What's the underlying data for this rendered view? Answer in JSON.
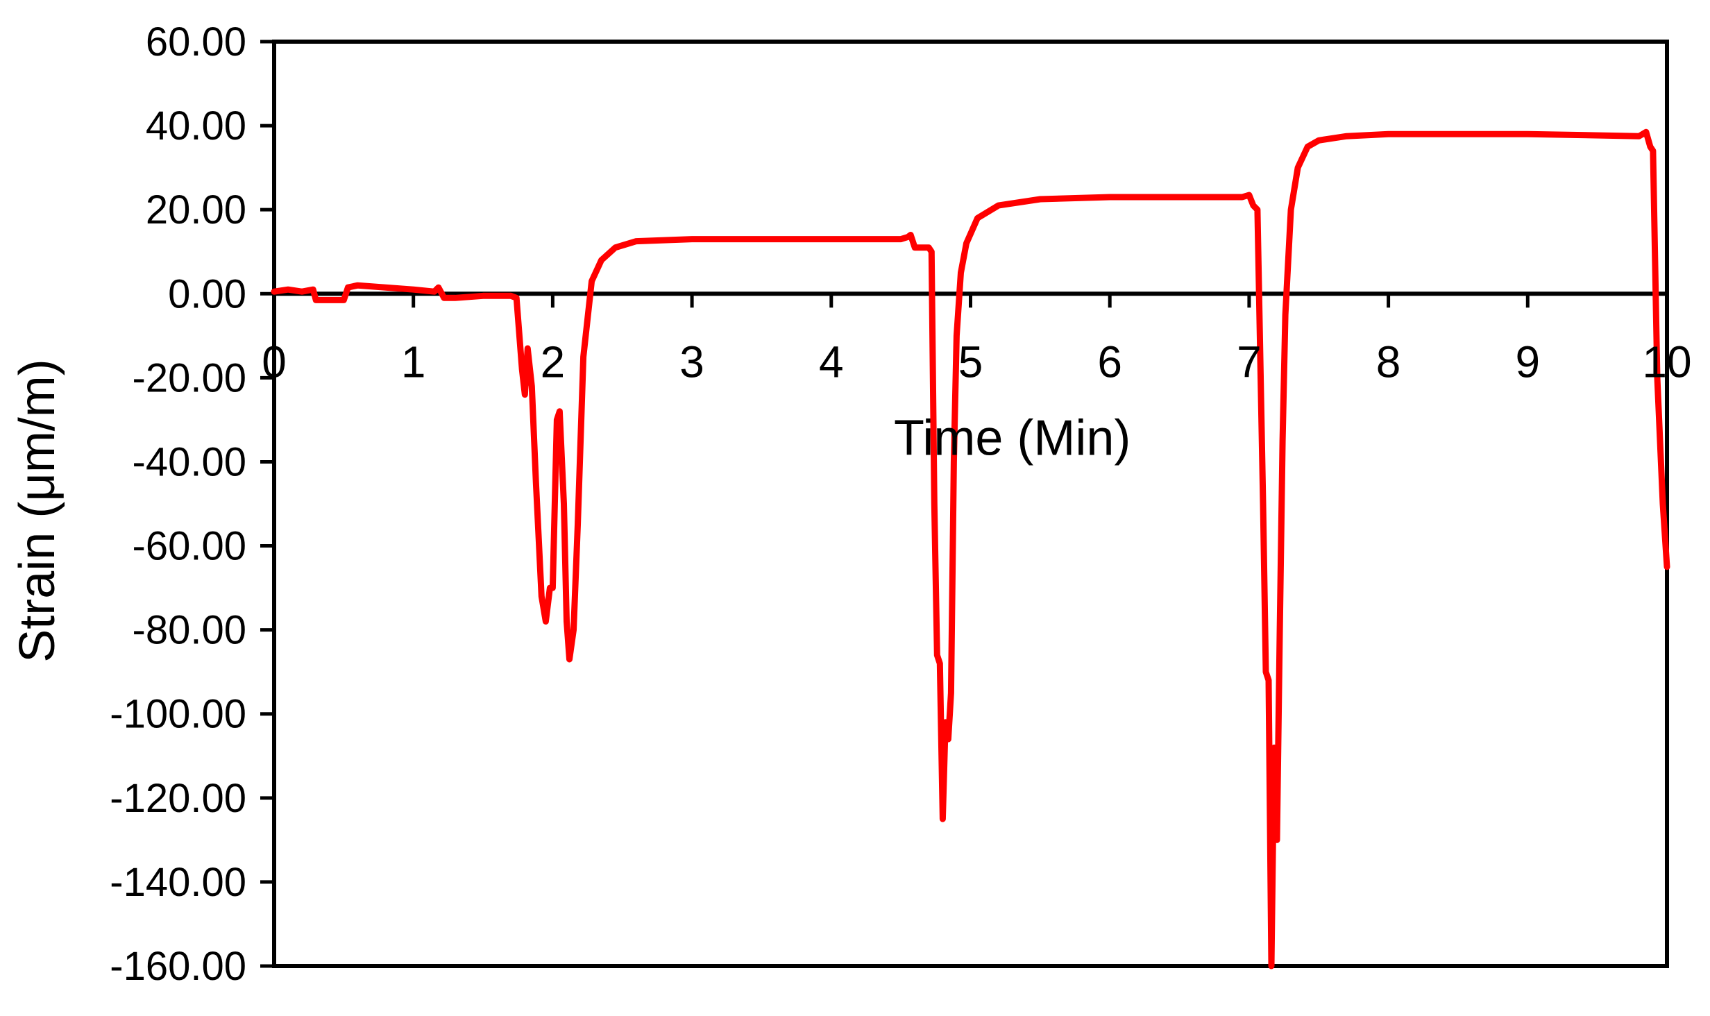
{
  "chart_data": {
    "type": "line",
    "xlabel": "Time (Min)",
    "ylabel": "Strain (μm/m)",
    "xlim": [
      0,
      10
    ],
    "ylim": [
      -160,
      60
    ],
    "x_ticks": [
      0,
      1,
      2,
      3,
      4,
      5,
      6,
      7,
      8,
      9,
      10
    ],
    "x_tick_labels": [
      "0",
      "1",
      "2",
      "3",
      "4",
      "5",
      "6",
      "7",
      "8",
      "9",
      "10"
    ],
    "y_ticks": [
      60,
      40,
      20,
      0,
      -20,
      -40,
      -60,
      -80,
      -100,
      -120,
      -140,
      -160
    ],
    "y_tick_labels": [
      "60.00",
      "40.00",
      "20.00",
      "0.00",
      "-20.00",
      "-40.00",
      "-60.00",
      "-80.00",
      "-100.00",
      "-120.00",
      "-140.00",
      "-160.00"
    ],
    "grid": false,
    "legend": "none",
    "line_color": "#ff0000",
    "series": [
      {
        "x": [
          0,
          0.1,
          0.2,
          0.28,
          0.3,
          0.4,
          0.5,
          0.53,
          0.6,
          0.8,
          1.0,
          1.15,
          1.18,
          1.22,
          1.3,
          1.5,
          1.7,
          1.74,
          1.78,
          1.8,
          1.82,
          1.85,
          1.88,
          1.92,
          1.95,
          1.98,
          2.0,
          2.03,
          2.05,
          2.08,
          2.1,
          2.12,
          2.15,
          2.18,
          2.22,
          2.28,
          2.35,
          2.45,
          2.6,
          3.0,
          3.5,
          4.0,
          4.5,
          4.55,
          4.57,
          4.6,
          4.7,
          4.72,
          4.74,
          4.76,
          4.78,
          4.8,
          4.82,
          4.84,
          4.86,
          4.88,
          4.9,
          4.93,
          4.97,
          5.05,
          5.2,
          5.5,
          6.0,
          6.5,
          6.95,
          7.0,
          7.03,
          7.06,
          7.1,
          7.12,
          7.14,
          7.16,
          7.18,
          7.2,
          7.22,
          7.24,
          7.26,
          7.3,
          7.35,
          7.42,
          7.5,
          7.7,
          8.0,
          9.0,
          9.8,
          9.85,
          9.88,
          9.9,
          9.93,
          9.97,
          10.0
        ],
        "values": [
          0.5,
          1,
          0.5,
          1,
          -1.5,
          -1.5,
          -1.5,
          1.5,
          2,
          1.5,
          1,
          0.5,
          1.5,
          -1,
          -1,
          -0.5,
          -0.5,
          -1,
          -18,
          -24,
          -13,
          -22,
          -45,
          -72,
          -78,
          -70,
          -70,
          -30,
          -28,
          -50,
          -78,
          -87,
          -80,
          -55,
          -15,
          3,
          8,
          11,
          12.5,
          13,
          13,
          13,
          13,
          13.5,
          14,
          11,
          11,
          10,
          -50,
          -86,
          -88,
          -125,
          -102,
          -106,
          -95,
          -40,
          -10,
          5,
          12,
          18,
          21,
          22.5,
          23,
          23,
          23,
          23.5,
          21,
          20,
          -50,
          -90,
          -92,
          -160,
          -108,
          -130,
          -80,
          -35,
          -5,
          20,
          30,
          35,
          36.5,
          37.5,
          38,
          38,
          37.5,
          38.5,
          35,
          34,
          -20,
          -50,
          -65
        ]
      }
    ]
  }
}
